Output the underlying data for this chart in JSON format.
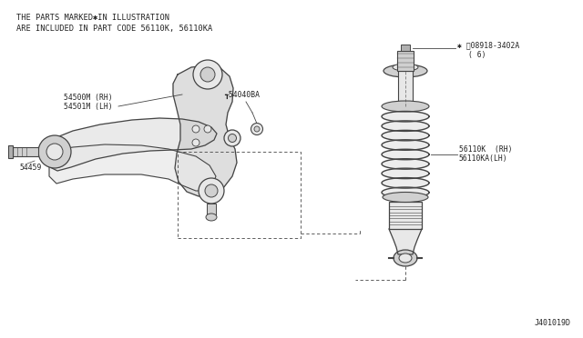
{
  "bg_color": "#ffffff",
  "line_color": "#444444",
  "fill_light": "#e8e8e8",
  "fill_mid": "#d0d0d0",
  "fill_dark": "#b0b0b0",
  "text_color": "#222222",
  "header_line1": "THE PARTS MARKED✱IN ILLUSTRATION",
  "header_line2": "ARE INCLUDED IN PART CODE 56110K, 56110KA",
  "label_54500M": "54500M (RH)",
  "label_54501M": "54501M (LH)",
  "label_54040BA": "┱54040BA",
  "label_54459": "54459",
  "label_08918a": "✱ ⓝ08918-3402A",
  "label_08918b": "( 6)",
  "label_56110K": "56110K  (RH)",
  "label_56110KA": "56110KA(LH)",
  "diagram_id": "J401019D",
  "figsize": [
    6.4,
    3.72
  ],
  "dpi": 100
}
